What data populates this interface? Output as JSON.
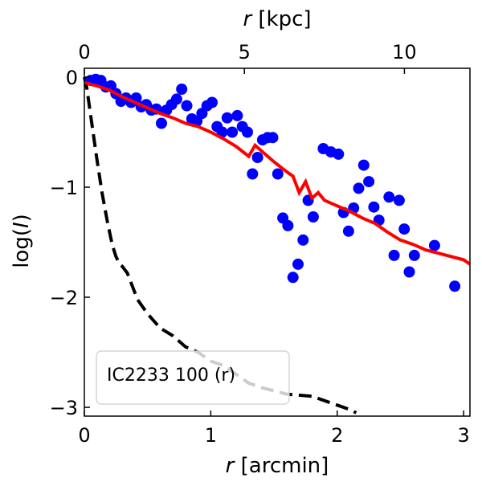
{
  "chart_data": {
    "type": "scatter",
    "legend_label": "IC2233 100 (r)",
    "legend_placement": "lower-left",
    "xlabel_bottom": {
      "symbol": "r",
      "unit": "[arcmin]"
    },
    "xlabel_top": {
      "symbol": "r",
      "unit": "[kpc]"
    },
    "ylabel": {
      "prefix": "log(",
      "symbol": "I",
      "suffix": ")"
    },
    "xlim": [
      0,
      3.05
    ],
    "ylim": [
      -3.08,
      0.08
    ],
    "x_ticks": [
      0,
      1,
      2,
      3
    ],
    "x_tick_labels": [
      "0",
      "1",
      "2",
      "3"
    ],
    "y_ticks": [
      0,
      -1,
      -2,
      -3
    ],
    "y_tick_labels": [
      "0",
      "−1",
      "−2",
      "−3"
    ],
    "kpc_per_arcmin": 3.95,
    "top_ticks_kpc": [
      0,
      5,
      10
    ],
    "top_tick_labels": [
      "0",
      "5",
      "10"
    ],
    "colors": {
      "points": "#0000ff",
      "model": "#ff0000",
      "psf": "#000000",
      "legend_edge": "#cccccc"
    },
    "series": [
      {
        "name": "data points",
        "style": "markers",
        "x": [
          0.05,
          0.09,
          0.13,
          0.17,
          0.21,
          0.25,
          0.29,
          0.33,
          0.37,
          0.41,
          0.45,
          0.49,
          0.53,
          0.57,
          0.61,
          0.65,
          0.69,
          0.73,
          0.77,
          0.81,
          0.85,
          0.89,
          0.93,
          0.97,
          1.01,
          1.05,
          1.09,
          1.13,
          1.17,
          1.21,
          1.25,
          1.29,
          1.33,
          1.37,
          1.41,
          1.45,
          1.49,
          1.53,
          1.57,
          1.61,
          1.65,
          1.69,
          1.73,
          1.77,
          1.81,
          1.89,
          1.95,
          2.01,
          2.05,
          2.09,
          2.13,
          2.17,
          2.21,
          2.25,
          2.29,
          2.33,
          2.41,
          2.45,
          2.49,
          2.53,
          2.57,
          2.61,
          2.77,
          2.93
        ],
        "y": [
          -0.03,
          -0.02,
          -0.03,
          -0.09,
          -0.08,
          -0.15,
          -0.22,
          -0.19,
          -0.23,
          -0.19,
          -0.27,
          -0.25,
          -0.3,
          -0.29,
          -0.42,
          -0.3,
          -0.25,
          -0.2,
          -0.11,
          -0.26,
          -0.38,
          -0.4,
          -0.33,
          -0.26,
          -0.23,
          -0.45,
          -0.5,
          -0.37,
          -0.5,
          -0.35,
          -0.45,
          -0.5,
          -0.88,
          -0.73,
          -0.57,
          -0.55,
          -0.55,
          -0.88,
          -1.28,
          -1.35,
          -1.82,
          -1.7,
          -1.48,
          -1.12,
          -1.27,
          -0.65,
          -0.68,
          -0.7,
          -1.23,
          -1.4,
          -1.19,
          -1.01,
          -0.8,
          -0.95,
          -1.18,
          -1.3,
          -1.09,
          -1.62,
          -1.12,
          -1.38,
          -1.77,
          -1.62,
          -1.53,
          -1.9
        ]
      },
      {
        "name": "model profile",
        "style": "solid",
        "x": [
          0,
          0.1,
          0.2,
          0.3,
          0.4,
          0.5,
          0.6,
          0.7,
          0.8,
          0.9,
          1.0,
          1.1,
          1.2,
          1.3,
          1.35,
          1.4,
          1.5,
          1.6,
          1.65,
          1.7,
          1.75,
          1.8,
          1.85,
          1.9,
          2.0,
          2.1,
          2.2,
          2.3,
          2.4,
          2.5,
          2.6,
          2.7,
          2.8,
          2.9,
          3.0,
          3.05
        ],
        "y": [
          -0.05,
          -0.08,
          -0.12,
          -0.18,
          -0.23,
          -0.28,
          -0.33,
          -0.37,
          -0.42,
          -0.45,
          -0.5,
          -0.56,
          -0.63,
          -0.72,
          -0.62,
          -0.67,
          -0.77,
          -0.86,
          -0.9,
          -1.05,
          -0.95,
          -1.1,
          -1.05,
          -1.12,
          -1.17,
          -1.22,
          -1.28,
          -1.33,
          -1.41,
          -1.48,
          -1.52,
          -1.57,
          -1.6,
          -1.63,
          -1.66,
          -1.7
        ]
      },
      {
        "name": "psf profile",
        "style": "dashed",
        "x": [
          0,
          0.02,
          0.05,
          0.1,
          0.14,
          0.18,
          0.22,
          0.25,
          0.28,
          0.3,
          0.34,
          0.38,
          0.42,
          0.5,
          0.6,
          0.7,
          0.8,
          0.9,
          1.0,
          1.1,
          1.2,
          1.3,
          1.4,
          1.6,
          1.8,
          2.0,
          2.1,
          2.15
        ],
        "y": [
          0,
          -0.1,
          -0.35,
          -0.75,
          -1.05,
          -1.3,
          -1.52,
          -1.63,
          -1.7,
          -1.72,
          -1.78,
          -1.9,
          -2.02,
          -2.15,
          -2.28,
          -2.35,
          -2.45,
          -2.5,
          -2.58,
          -2.62,
          -2.7,
          -2.78,
          -2.82,
          -2.88,
          -2.9,
          -2.98,
          -3.02,
          -3.05
        ]
      }
    ]
  }
}
